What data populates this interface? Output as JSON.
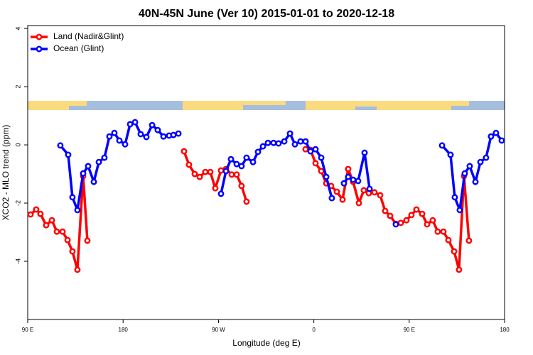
{
  "chart_data": {
    "type": "line",
    "title": "40N-45N June (Ver 10)   2015-01-01 to 2020-12-18",
    "x_label": "Longitude (deg E)",
    "y_label": "XCO2 - MLO trend (ppm)",
    "xlim": [
      90,
      540
    ],
    "ylim": [
      -6,
      4.1
    ],
    "xticks": [
      {
        "value": 90,
        "label": "90 E"
      },
      180,
      {
        "value": 270,
        "label": "90 W"
      },
      {
        "value": 360,
        "label": "0"
      },
      {
        "value": 450,
        "label": "90 E"
      },
      {
        "value": 540,
        "label": "180"
      }
    ],
    "yticks": [
      -4,
      -2,
      0,
      2,
      4
    ],
    "grid": false,
    "legend": "top-left",
    "series": [
      {
        "name": "Land (Nadir&Glint)",
        "color": "#ff0000",
        "x": [
          92.7,
          98,
          102,
          107.4,
          112.8,
          117.5,
          122.9,
          127.6,
          132.2,
          136.9,
          142.3,
          146.3,
          null,
          237.5,
          242.2,
          247.6,
          252.3,
          257.6,
          262.3,
          267,
          272.4,
          277.1,
          282.5,
          287.2,
          291.8,
          296.5,
          null,
          352.2,
          356.9,
          361.6,
          367,
          371.7,
          376.3,
          381.7,
          387.1,
          392.4,
          397.1,
          402.5,
          407.2,
          411.9,
          417.2,
          422.6,
          427.3,
          432,
          437.4,
          442.1,
          447.4,
          452.1,
          456.8,
          462.2,
          466.9,
          472.2,
          476.9,
          482.3,
          487,
          492.4,
          497,
          501.7,
          506.4
        ],
        "values": [
          -2.39,
          -2.22,
          -2.37,
          -2.76,
          -2.59,
          -2.98,
          -2.98,
          -3.27,
          -3.66,
          -4.29,
          -1.07,
          -3.29,
          null,
          -0.22,
          -0.68,
          -1.0,
          -1.1,
          -0.93,
          -0.93,
          -1.49,
          -0.88,
          -0.83,
          -1.02,
          -1.02,
          -1.41,
          -1.95,
          null,
          -0.15,
          -0.17,
          -0.63,
          -0.9,
          -1.32,
          -1.41,
          -1.61,
          -1.88,
          -0.83,
          -1.27,
          -2.0,
          -1.56,
          -1.66,
          -1.63,
          -1.73,
          -2.27,
          -2.44,
          -2.71,
          -2.68,
          -2.59,
          -2.41,
          -2.22,
          -2.37,
          -2.73,
          -2.59,
          -2.98,
          -2.98,
          -3.27,
          -3.66,
          -4.29,
          -1.07,
          -3.29
        ]
      },
      {
        "name": "Ocean (Glint)",
        "color": "#0000ff",
        "x": [
          120.8,
          128.2,
          132.2,
          136.9,
          142.3,
          147,
          152.4,
          157.1,
          162.4,
          167.1,
          171.8,
          176.5,
          181.9,
          186.6,
          191.3,
          196.6,
          202,
          207.4,
          212.7,
          218.1,
          223.4,
          227.5,
          232.2,
          null,
          272.4,
          277.1,
          281.8,
          287.2,
          291.8,
          296.5,
          302.6,
          307.3,
          312,
          316.7,
          322,
          326.7,
          332.1,
          337.5,
          342.2,
          347.5,
          352.2,
          356.9,
          361.6,
          367,
          371.7,
          377,
          null,
          388.4,
          392.4,
          397.1,
          401.8,
          407.9,
          412.6,
          null,
          437.4,
          null,
          481,
          489,
          493,
          497.7,
          502.4,
          507.1,
          512.5,
          517.2,
          522.5,
          527.2,
          531.9,
          537.3
        ],
        "values": [
          -0.02,
          -0.34,
          -1.8,
          -2.24,
          -0.98,
          -0.73,
          -1.27,
          -0.59,
          -0.44,
          0.29,
          0.41,
          0.15,
          0.02,
          0.71,
          0.78,
          0.37,
          0.27,
          0.68,
          0.51,
          0.29,
          0.32,
          0.34,
          0.39,
          null,
          -1.68,
          -0.9,
          -0.49,
          -0.66,
          -0.73,
          -0.44,
          -0.59,
          -0.24,
          -0.05,
          0.07,
          0.07,
          0.05,
          0.12,
          0.39,
          0.02,
          0.12,
          0.12,
          -0.22,
          -0.15,
          -0.44,
          -1.1,
          -1.83,
          null,
          -1.32,
          -1.1,
          -1.2,
          -1.24,
          -0.27,
          -1.51,
          null,
          -2.73,
          null,
          -0.02,
          -0.34,
          -1.8,
          -2.24,
          -0.98,
          -0.73,
          -1.27,
          -0.59,
          -0.44,
          0.29,
          0.41,
          0.15
        ]
      }
    ]
  }
}
